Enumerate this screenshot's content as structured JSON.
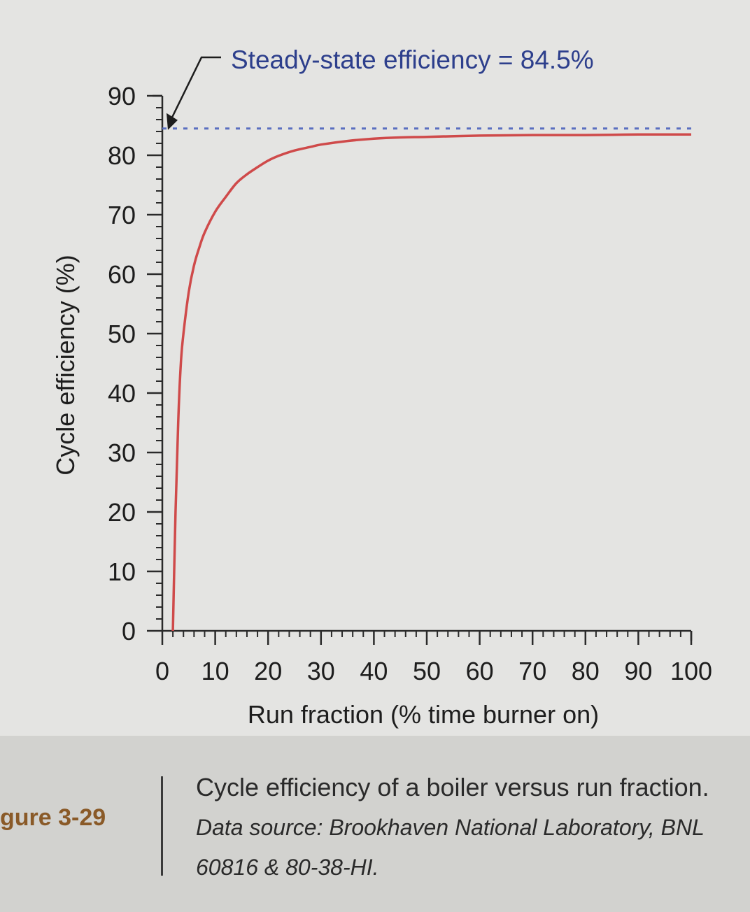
{
  "chart_data": {
    "type": "line",
    "xlabel": "Run fraction (% time burner on)",
    "ylabel": "Cycle efficiency (%)",
    "xlim": [
      0,
      100
    ],
    "ylim": [
      0,
      90
    ],
    "x_ticks": [
      0,
      10,
      20,
      30,
      40,
      50,
      60,
      70,
      80,
      90,
      100
    ],
    "y_ticks": [
      0,
      10,
      20,
      30,
      40,
      50,
      60,
      70,
      80,
      90
    ],
    "series": [
      {
        "color": "#cf4a4a",
        "x": [
          2,
          2.5,
          3,
          3.5,
          4,
          5,
          6,
          7,
          8,
          10,
          12,
          14,
          16,
          18,
          20,
          22,
          25,
          28,
          30,
          35,
          40,
          45,
          50,
          60,
          70,
          80,
          90,
          100
        ],
        "y": [
          0,
          20,
          35,
          45,
          50,
          57,
          61.5,
          64.5,
          67,
          70.5,
          73,
          75.3,
          76.8,
          78,
          79.1,
          79.9,
          80.8,
          81.4,
          81.8,
          82.4,
          82.8,
          83,
          83.1,
          83.3,
          83.4,
          83.4,
          83.5,
          83.5
        ]
      }
    ],
    "reference_line": {
      "y": 84.5,
      "style": "dashed",
      "color": "#5a6fc0"
    },
    "annotation": "Steady-state efficiency = 84.5%",
    "grid": false,
    "legend": "none"
  },
  "caption": {
    "figure_label": "gure 3-29",
    "text": "Cycle efficiency of a boiler versus run fraction.",
    "source": "Data source: Brookhaven National Laboratory, BNL 60816 & 80-38-HI."
  }
}
